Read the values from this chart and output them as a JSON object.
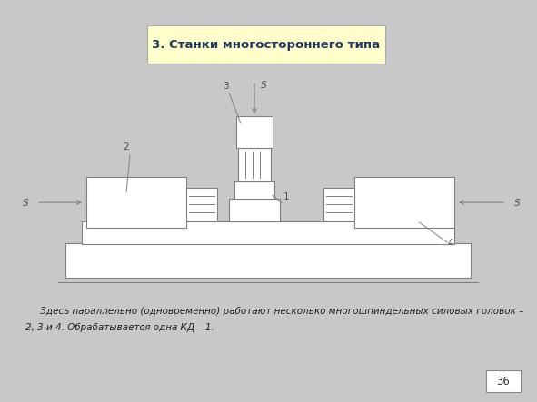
{
  "title": "3. Станки многостороннего типа",
  "title_bg": "#FFFFCC",
  "title_color": "#1F3864",
  "body_line1": "     Здесь параллельно (одновременно) работают несколько многошпиндельных силовых головок –",
  "body_line2": "2, 3 и 4. Обрабатывается одна КД – 1.",
  "page_number": "36",
  "bg_color": "#C8C8C8",
  "slide_bg": "#FFFFFF",
  "line_color": "#808080",
  "label_color": "#505050"
}
